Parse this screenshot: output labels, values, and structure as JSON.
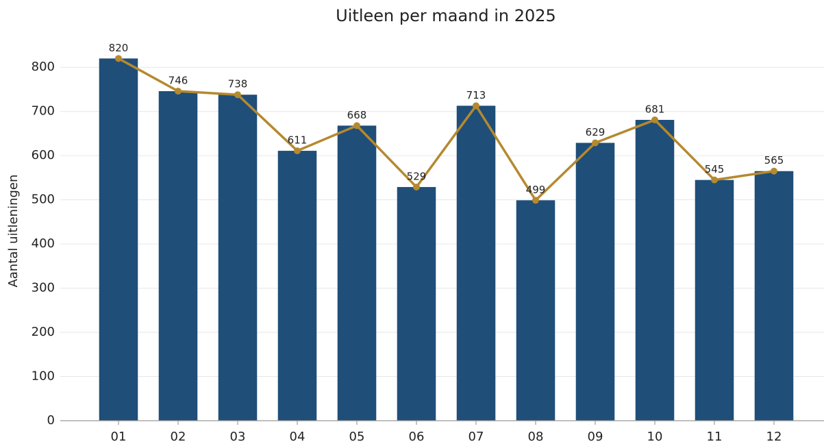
{
  "chart_data": {
    "type": "bar",
    "title": "Uitleen per maand in 2025",
    "y_label": "Aantal uitleningen",
    "categories": [
      "01",
      "02",
      "03",
      "04",
      "05",
      "06",
      "07",
      "08",
      "09",
      "10",
      "11",
      "12"
    ],
    "values": [
      820,
      746,
      738,
      611,
      668,
      529,
      713,
      499,
      629,
      681,
      545,
      565
    ],
    "color": "#1f4e79",
    "line_overlay": true,
    "line_color": "#b5892f",
    "ylim": [
      0,
      850
    ],
    "yticks": [
      0,
      100,
      200,
      300,
      400,
      500,
      600,
      700,
      800
    ],
    "grid": true
  }
}
